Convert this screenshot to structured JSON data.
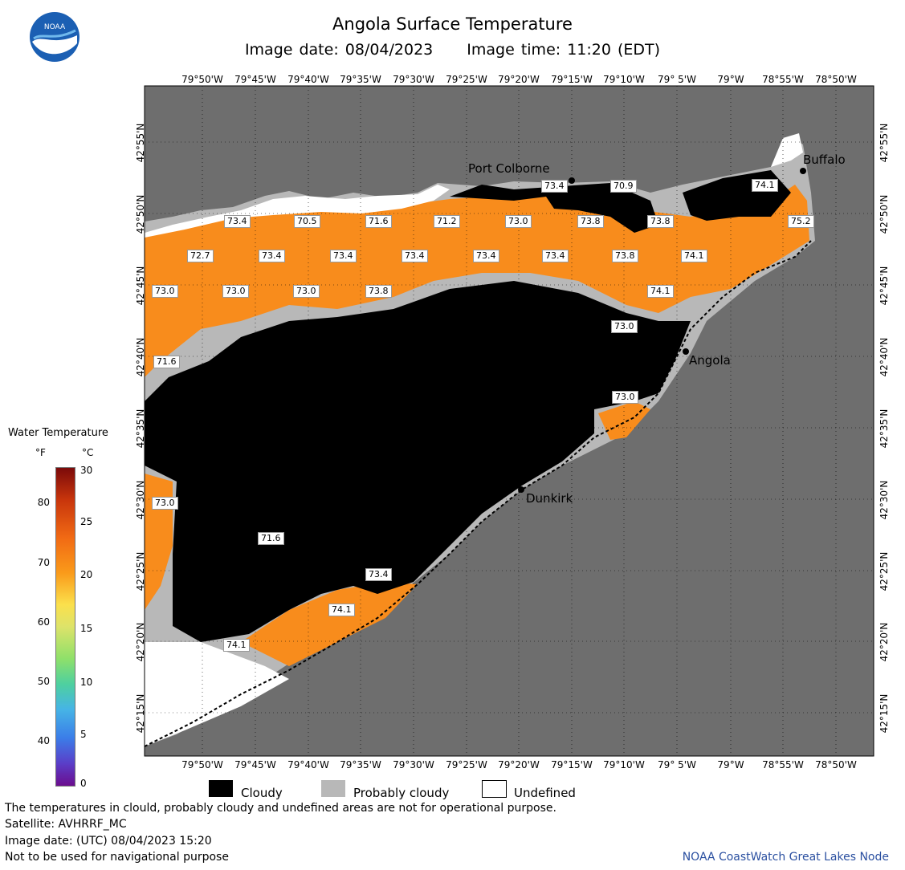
{
  "header": {
    "title": "Angola Surface Temperature",
    "image_date": "Image date: 08/04/2023",
    "image_time": "Image time: 11:20 (EDT)",
    "logo": "noaa-logo"
  },
  "map": {
    "longitude_labels": [
      "79°50'W",
      "79°45'W",
      "79°40'W",
      "79°35'W",
      "79°30'W",
      "79°25'W",
      "79°20'W",
      "79°15'W",
      "79°10'W",
      "79° 5'W",
      "79°W",
      "78°55'W",
      "78°50'W"
    ],
    "latitude_labels": [
      "42°55'N",
      "42°50'N",
      "42°45'N",
      "42°40'N",
      "42°35'N",
      "42°30'N",
      "42°25'N",
      "42°20'N",
      "42°15'N"
    ],
    "places": [
      "Port Colborne",
      "Buffalo",
      "Angola",
      "Dunkirk"
    ],
    "temperature_labels": [
      "73.4",
      "70.9",
      "74.1",
      "75.2",
      "73.4",
      "70.5",
      "71.6",
      "71.2",
      "73.0",
      "73.8",
      "73.8",
      "72.7",
      "73.4",
      "73.4",
      "73.4",
      "73.4",
      "73.4",
      "73.8",
      "74.1",
      "73.0",
      "73.0",
      "73.0",
      "73.8",
      "74.1",
      "73.0",
      "71.6",
      "73.0",
      "73.0",
      "71.6",
      "73.4",
      "74.1",
      "74.1"
    ],
    "colors": {
      "land": "#6e6e6e",
      "water": "#f88c1c",
      "cloudy": "#000000",
      "probably_cloudy": "#b8b8b8",
      "undefined": "#ffffff"
    }
  },
  "legend": {
    "title": "Water Temperature",
    "unit_f": "°F",
    "unit_c": "°C",
    "f_ticks": [
      "80",
      "70",
      "60",
      "50",
      "40"
    ],
    "c_ticks": [
      "30",
      "25",
      "20",
      "15",
      "10",
      "5",
      "0"
    ]
  },
  "key": {
    "cloudy": "Cloudy",
    "probably_cloudy": "Probably cloudy",
    "undefined": "Undefined"
  },
  "footer": {
    "note": "The temperatures in clould, probably cloudy and undefined areas are not for operational purpose.",
    "satellite": "Satellite: AVHRRF_MC",
    "utc_date": "Image date: (UTC) 08/04/2023  15:20",
    "nav": "Not to be used for navigational purpose",
    "credit": "NOAA CoastWatch Great Lakes Node"
  }
}
